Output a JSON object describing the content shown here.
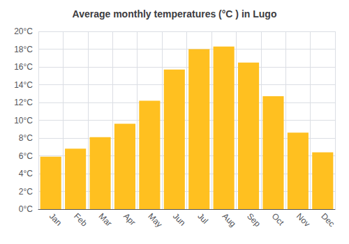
{
  "chart_data": {
    "type": "bar",
    "title": "Average monthly temperatures (°C ) in Lugo",
    "categories": [
      "Jan",
      "Feb",
      "Mar",
      "Apr",
      "May",
      "Jun",
      "Jul",
      "Aug",
      "Sep",
      "Oct",
      "Nov",
      "Dec"
    ],
    "values": [
      5.9,
      6.8,
      8.1,
      9.6,
      12.2,
      15.7,
      18.0,
      18.3,
      16.5,
      12.7,
      8.6,
      6.4
    ],
    "color": "#FFC020",
    "ylim": [
      0,
      20
    ],
    "yticks": [
      {
        "value": 0,
        "label": "0°C"
      },
      {
        "value": 2,
        "label": "2°C"
      },
      {
        "value": 4,
        "label": "4°C"
      },
      {
        "value": 6,
        "label": "6°C"
      },
      {
        "value": 8,
        "label": "8°C"
      },
      {
        "value": 10,
        "label": "10°C"
      },
      {
        "value": 12,
        "label": "12°C"
      },
      {
        "value": 14,
        "label": "14°C"
      },
      {
        "value": 16,
        "label": "16°C"
      },
      {
        "value": 18,
        "label": "18°C"
      },
      {
        "value": 20,
        "label": "20°C"
      }
    ],
    "grid": true
  }
}
